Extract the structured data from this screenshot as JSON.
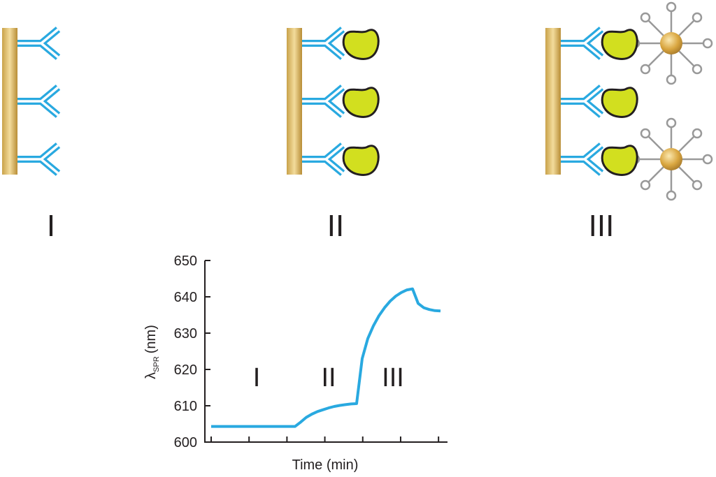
{
  "panels": [
    "I",
    "II",
    "III"
  ],
  "chart_data": {
    "type": "line",
    "xlabel": "Time (min)",
    "ylabel": "λ",
    "ylabel_sub": "SPR",
    "ylabel_unit": "(nm)",
    "annotations": [
      "I",
      "II",
      "III"
    ],
    "categories": [
      null,
      null,
      null,
      null,
      null,
      null,
      null,
      null,
      null,
      null,
      null,
      null,
      null,
      null,
      null,
      null,
      null,
      null,
      null,
      null,
      null,
      null,
      null,
      null,
      null,
      null,
      null,
      null,
      null,
      null,
      null,
      null,
      null,
      null,
      null,
      null,
      null,
      null,
      null,
      null,
      null,
      null
    ],
    "values": [
      604.3,
      604.3,
      604.3,
      604.3,
      604.3,
      604.3,
      604.3,
      604.3,
      604.3,
      604.3,
      604.3,
      604.3,
      604.3,
      604.3,
      604.3,
      604.3,
      605.5,
      606.8,
      607.7,
      608.4,
      608.9,
      609.4,
      609.8,
      610.1,
      610.3,
      610.5,
      610.6,
      623,
      628.5,
      632,
      634.8,
      637,
      638.8,
      640.2,
      641.2,
      641.9,
      642.2,
      638.2,
      637,
      636.5,
      636.2,
      636.1
    ],
    "color": "#29a9e0",
    "ylim": [
      600,
      650
    ],
    "yticks": [
      600,
      610,
      620,
      630,
      640,
      650
    ]
  }
}
